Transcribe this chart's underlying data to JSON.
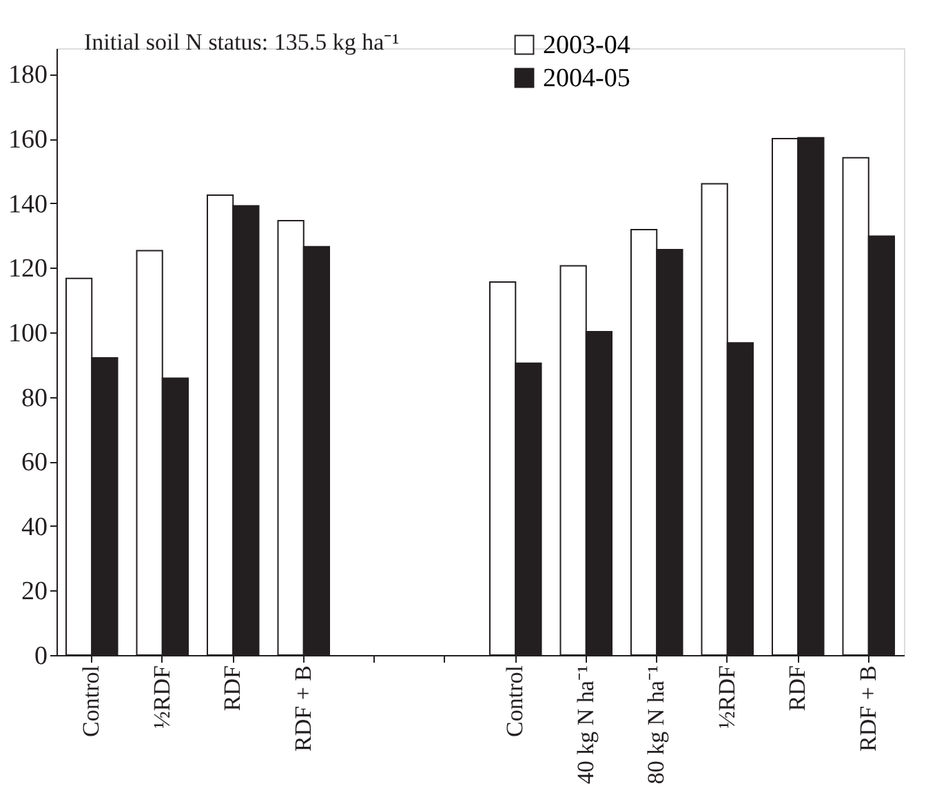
{
  "chart_data": {
    "type": "bar",
    "categories": [
      "Control",
      "½RDF",
      "RDF",
      "RDF + B",
      null,
      null,
      "Control",
      "40 kg N ha⁻¹",
      "80 kg N ha⁻¹",
      "½RDF",
      "RDF",
      "RDF + B"
    ],
    "series": [
      {
        "name": "2003-04",
        "color": "#ffffff",
        "values": [
          116.7,
          125.3,
          142.5,
          134.6,
          null,
          null,
          115.6,
          120.6,
          131.8,
          146.0,
          160.0,
          154.1
        ]
      },
      {
        "name": "2004-05",
        "color": "#231f20",
        "values": [
          92.1,
          85.8,
          139.2,
          126.5,
          null,
          null,
          90.4,
          100.2,
          125.6,
          96.7,
          160.3,
          129.8
        ]
      }
    ],
    "ylim": [
      0,
      188
    ],
    "yticks": [
      0,
      20,
      40,
      60,
      80,
      100,
      120,
      140,
      160,
      180
    ],
    "annotations": [
      "Initial soil N status: 135.5 kg ha⁻¹"
    ],
    "legend": "top",
    "grid": false
  }
}
